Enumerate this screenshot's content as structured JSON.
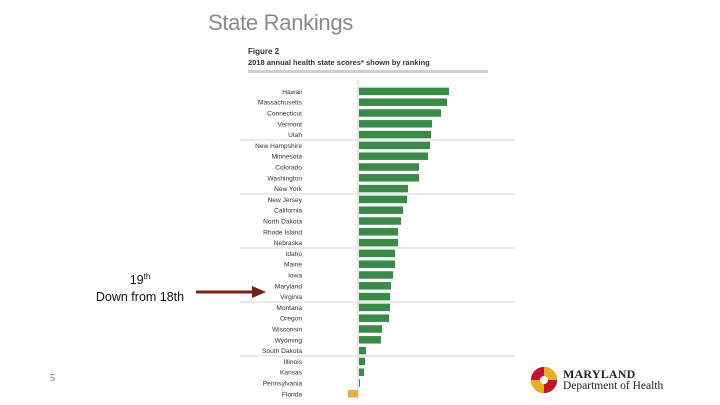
{
  "slide": {
    "title": "State Rankings",
    "slide_number": "5"
  },
  "figure": {
    "label": "Figure 2",
    "caption": "2018 annual health state scores* shown by ranking"
  },
  "callout": {
    "rank": "19",
    "rank_suffix": "th",
    "note": "Down from 18th"
  },
  "logo": {
    "line1": "MARYLAND",
    "line2": "Department of Health"
  },
  "colors": {
    "positive": "#3a8a47",
    "negative": "#f0a94a",
    "arrow": "#7a1f12",
    "rule": "#cfcfcf"
  },
  "chart_data": {
    "type": "bar",
    "orientation": "horizontal",
    "title": "2018 annual health state scores* shown by ranking",
    "xlabel": "",
    "ylabel": "",
    "categories": [
      "Hawaii",
      "Massachusetts",
      "Connecticut",
      "Vermont",
      "Utah",
      "New Hampshire",
      "Minnesota",
      "Colorado",
      "Washington",
      "New York",
      "New Jersey",
      "California",
      "North Dakota",
      "Rhode Island",
      "Nebraska",
      "Idaho",
      "Maine",
      "Iowa",
      "Maryland",
      "Virginia",
      "Montana",
      "Oregon",
      "Wisconsin",
      "Wyoming",
      "South Dakota",
      "Illinois",
      "Kansas",
      "Pennsylvania",
      "Florida"
    ],
    "values": [
      0.9,
      0.88,
      0.82,
      0.73,
      0.72,
      0.71,
      0.69,
      0.6,
      0.6,
      0.49,
      0.48,
      0.44,
      0.42,
      0.39,
      0.39,
      0.36,
      0.36,
      0.34,
      0.32,
      0.31,
      0.31,
      0.3,
      0.23,
      0.22,
      0.07,
      0.06,
      0.05,
      0.01,
      -0.1
    ],
    "highlight": "Maryland",
    "group_dividers_after": [
      "Utah",
      "New York",
      "Nebraska",
      "Virginia",
      "South Dakota"
    ],
    "xlim": [
      -0.15,
      0.95
    ]
  }
}
